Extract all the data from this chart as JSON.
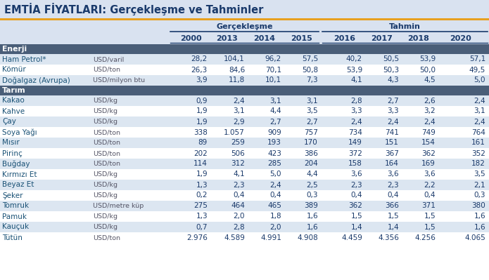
{
  "title": "EMTİA FİYATLARI: Gerçekleşme ve Tahminler",
  "title_color": "#1a3a6b",
  "title_bg": "#d9e2f0",
  "orange_line_color": "#e8a020",
  "header_group1": "Gerçekleşme",
  "header_group2": "Tahmin",
  "col_years": [
    "2000",
    "2013",
    "2014",
    "2015",
    "2016",
    "2017",
    "2018",
    "2020"
  ],
  "section_header_bg": "#4a5e78",
  "section_header_color": "#ffffff",
  "row_alt1": "#dce6f1",
  "row_alt2": "#ffffff",
  "col_name_color": "#1a5276",
  "unit_color": "#555566",
  "data_color": "#1a3a6b",
  "enerji_rows": [
    {
      "name": "Ham Petrol*",
      "unit": "USD/varil",
      "vals": [
        "28,2",
        "104,1",
        "96,2",
        "57,5",
        "40,2",
        "50,5",
        "53,9",
        "57,1"
      ]
    },
    {
      "name": "Kömür",
      "unit": "USD/ton",
      "vals": [
        "26,3",
        "84,6",
        "70,1",
        "50,8",
        "53,9",
        "50,3",
        "50,0",
        "49,5"
      ]
    },
    {
      "name": "Doğalgaz (Avrupa)",
      "unit": "USD/milyon btu",
      "vals": [
        "3,9",
        "11,8",
        "10,1",
        "7,3",
        "4,1",
        "4,3",
        "4,5",
        "5,0"
      ]
    }
  ],
  "tarim_rows": [
    {
      "name": "Kakao",
      "unit": "USD/kg",
      "vals": [
        "0,9",
        "2,4",
        "3,1",
        "3,1",
        "2,8",
        "2,7",
        "2,6",
        "2,4"
      ]
    },
    {
      "name": "Kahve",
      "unit": "USD/kg",
      "vals": [
        "1,9",
        "3,1",
        "4,4",
        "3,5",
        "3,3",
        "3,3",
        "3,2",
        "3,1"
      ]
    },
    {
      "name": "Çay",
      "unit": "USD/kg",
      "vals": [
        "1,9",
        "2,9",
        "2,7",
        "2,7",
        "2,4",
        "2,4",
        "2,4",
        "2,4"
      ]
    },
    {
      "name": "Soya Yağı",
      "unit": "USD/ton",
      "vals": [
        "338",
        "1.057",
        "909",
        "757",
        "734",
        "741",
        "749",
        "764"
      ]
    },
    {
      "name": "Mısır",
      "unit": "USD/ton",
      "vals": [
        "89",
        "259",
        "193",
        "170",
        "149",
        "151",
        "154",
        "161"
      ]
    },
    {
      "name": "Pirinç",
      "unit": "USD/ton",
      "vals": [
        "202",
        "506",
        "423",
        "386",
        "372",
        "367",
        "362",
        "352"
      ]
    },
    {
      "name": "Buğday",
      "unit": "USD/ton",
      "vals": [
        "114",
        "312",
        "285",
        "204",
        "158",
        "164",
        "169",
        "182"
      ]
    },
    {
      "name": "Kırmızı Et",
      "unit": "USD/kg",
      "vals": [
        "1,9",
        "4,1",
        "5,0",
        "4,4",
        "3,6",
        "3,6",
        "3,6",
        "3,5"
      ]
    },
    {
      "name": "Beyaz Et",
      "unit": "USD/kg",
      "vals": [
        "1,3",
        "2,3",
        "2,4",
        "2,5",
        "2,3",
        "2,3",
        "2,2",
        "2,1"
      ]
    },
    {
      "name": "Şeker",
      "unit": "USD/kg",
      "vals": [
        "0,2",
        "0,4",
        "0,4",
        "0,3",
        "0,4",
        "0,4",
        "0,4",
        "0,3"
      ]
    },
    {
      "name": "Tomruk",
      "unit": "USD/metre küp",
      "vals": [
        "275",
        "464",
        "465",
        "389",
        "362",
        "366",
        "371",
        "380"
      ]
    },
    {
      "name": "Pamuk",
      "unit": "USD/kg",
      "vals": [
        "1,3",
        "2,0",
        "1,8",
        "1,6",
        "1,5",
        "1,5",
        "1,5",
        "1,6"
      ]
    },
    {
      "name": "Kauçuk",
      "unit": "USD/kg",
      "vals": [
        "0,7",
        "2,8",
        "2,0",
        "1,6",
        "1,4",
        "1,4",
        "1,5",
        "1,6"
      ]
    },
    {
      "name": "Tütün",
      "unit": "USD/ton",
      "vals": [
        "2.976",
        "4.589",
        "4.991",
        "4.908",
        "4.459",
        "4.356",
        "4.256",
        "4.065"
      ]
    }
  ]
}
